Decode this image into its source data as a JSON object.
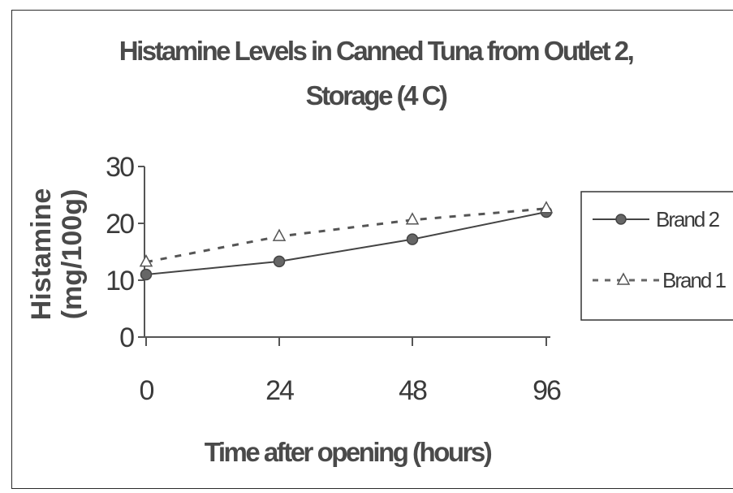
{
  "chart_data": {
    "type": "line",
    "title_line1": "Histamine Levels in Canned Tuna from Outlet 2,",
    "title_line2": "Storage (4 C)",
    "xlabel": "Time after opening (hours)",
    "ylabel_line1": "Histamine",
    "ylabel_line2": "(mg/100g)",
    "categories": [
      "0",
      "24",
      "48",
      "96"
    ],
    "yticks": [
      "0",
      "10",
      "20",
      "30"
    ],
    "ylim": [
      0,
      30
    ],
    "grid": false,
    "legend_position": "right",
    "series": [
      {
        "name": "Brand 2",
        "values": [
          11,
          13.3,
          17.2,
          22
        ],
        "style": "solid",
        "marker": "circle",
        "color": "#444444"
      },
      {
        "name": "Brand 1",
        "values": [
          13.2,
          17.7,
          20.6,
          22.6
        ],
        "style": "dashed",
        "marker": "triangle",
        "color": "#555555"
      }
    ]
  }
}
